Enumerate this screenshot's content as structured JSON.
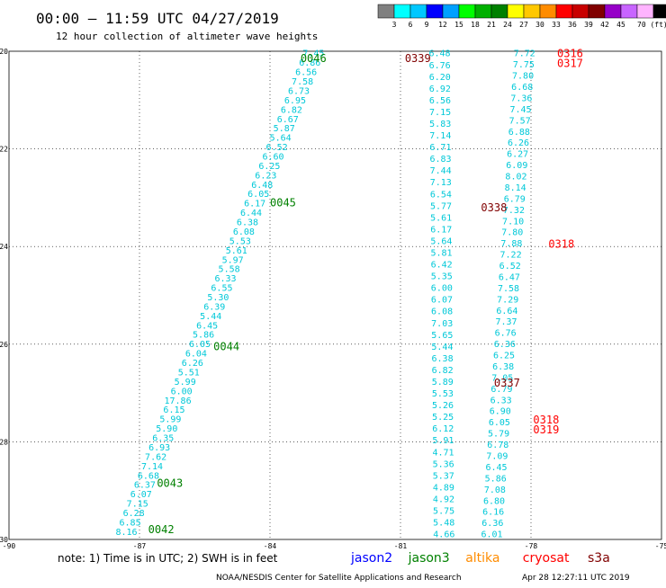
{
  "header": {
    "title": "00:00 — 11:59 UTC 04/27/2019",
    "subtitle": "12 hour collection of altimeter wave heights"
  },
  "colorbar": {
    "colors": [
      "#808080",
      "#00ffff",
      "#00c8ff",
      "#0000ff",
      "#00a0ff",
      "#00ff00",
      "#00b000",
      "#008000",
      "#ffff00",
      "#ffc800",
      "#ff8c00",
      "#ff0000",
      "#c80000",
      "#800000",
      "#9600c8",
      "#c864ff",
      "#ffb4ff",
      "#000000"
    ],
    "labels": [
      "3",
      "6",
      "9",
      "12",
      "15",
      "18",
      "21",
      "24",
      "27",
      "30",
      "33",
      "36",
      "39",
      "42",
      "45",
      "70 (ft)"
    ]
  },
  "footer": {
    "note": "note:  1) Time is in UTC;  2) SWH is in feet",
    "satellites": [
      {
        "name": "jason2",
        "color": "#0000ff"
      },
      {
        "name": "jason3",
        "color": "#008000"
      },
      {
        "name": "altika",
        "color": "#ff8c00"
      },
      {
        "name": "cryosat",
        "color": "#ff0000"
      },
      {
        "name": "s3a",
        "color": "#800000"
      }
    ],
    "credit": "NOAA/NESDIS Center for Satellite Applications and Research",
    "timestamp": "Apr 28 12:27:11 UTC 2019"
  },
  "chart_data": {
    "type": "scatter",
    "xlim": [
      -90,
      -75
    ],
    "ylim": [
      -30,
      -20
    ],
    "x_ticks": [
      "-90",
      "-87",
      "-84",
      "-81",
      "-78",
      "-75"
    ],
    "y_ticks": [
      "-20",
      "-22",
      "-24",
      "-26",
      "-28",
      "-30"
    ],
    "grid": true,
    "tracks": [
      {
        "pass": "0042",
        "color": "#00c8d8",
        "start": {
          "x": -87.3,
          "y": -29.85
        },
        "end": {
          "x": -83.0,
          "y": -20.05
        },
        "values": [
          "8.16",
          "6.85",
          "6.28",
          "7.15",
          "6.07",
          "6.37",
          "6.68",
          "7.14",
          "7.62",
          "6.93",
          "6.35",
          "5.90",
          "5.99",
          "6.15",
          "17.86",
          "6.00",
          "5.99",
          "5.51",
          "6.26",
          "6.04",
          "6.05",
          "5.86",
          "6.45",
          "5.44",
          "6.39",
          "5.30",
          "6.55",
          "6.33",
          "5.58",
          "5.97",
          "5.61",
          "5.53",
          "6.08",
          "6.38",
          "6.44",
          "6.17",
          "6.05",
          "6.48",
          "6.23",
          "6.25",
          "6.60",
          "6.52",
          "5.64",
          "5.87",
          "6.67",
          "6.82",
          "6.95",
          "6.73",
          "7.58",
          "6.56",
          "6.86",
          "7.45"
        ]
      },
      {
        "pass": "0338",
        "color": "#00c8d8",
        "start": {
          "x": -80.1,
          "y": -20.05
        },
        "end": {
          "x": -80.0,
          "y": -29.9
        },
        "values": [
          "6.48",
          "6.76",
          "6.20",
          "6.92",
          "6.56",
          "7.15",
          "5.83",
          "7.14",
          "6.71",
          "6.83",
          "7.44",
          "7.13",
          "6.54",
          "5.77",
          "5.61",
          "6.17",
          "5.64",
          "5.81",
          "6.42",
          "5.35",
          "6.00",
          "6.07",
          "6.08",
          "7.03",
          "5.65",
          "5.44",
          "6.38",
          "6.82",
          "5.89",
          "5.53",
          "5.26",
          "5.25",
          "6.12",
          "5.91",
          "4.71",
          "5.36",
          "5.37",
          "4.89",
          "4.92",
          "5.75",
          "5.48",
          "4.66"
        ]
      },
      {
        "pass": "0317",
        "color": "#00c8d8",
        "start": {
          "x": -78.15,
          "y": -20.05
        },
        "end": {
          "x": -78.9,
          "y": -29.9
        },
        "values": [
          "7.72",
          "7.75",
          "7.80",
          "6.68",
          "7.36",
          "7.45",
          "7.57",
          "6.88",
          "6.26",
          "6.27",
          "6.09",
          "8.02",
          "8.14",
          "6.79",
          "7.32",
          "7.10",
          "7.80",
          "7.88",
          "7.22",
          "6.52",
          "6.47",
          "7.58",
          "7.29",
          "6.64",
          "7.37",
          "6.76",
          "6.36",
          "6.25",
          "6.38",
          "7.05",
          "6.79",
          "6.33",
          "6.90",
          "6.05",
          "5.79",
          "6.78",
          "7.09",
          "6.45",
          "5.86",
          "7.08",
          "6.80",
          "6.16",
          "6.36",
          "6.01"
        ]
      }
    ],
    "pass_labels": [
      {
        "text": "0046",
        "x": -83.3,
        "y": -20.15,
        "color": "#008000"
      },
      {
        "text": "0339",
        "x": -80.9,
        "y": -20.15,
        "color": "#800000"
      },
      {
        "text": "0316",
        "x": -77.4,
        "y": -20.05,
        "color": "#ff0000"
      },
      {
        "text": "0317",
        "x": -77.4,
        "y": -20.25,
        "color": "#ff0000"
      },
      {
        "text": "0045",
        "x": -84.0,
        "y": -23.1,
        "color": "#008000"
      },
      {
        "text": "0338",
        "x": -79.15,
        "y": -23.2,
        "color": "#800000"
      },
      {
        "text": "0318",
        "x": -77.6,
        "y": -23.95,
        "color": "#ff0000"
      },
      {
        "text": "0044",
        "x": -85.3,
        "y": -26.05,
        "color": "#008000"
      },
      {
        "text": "0337",
        "x": -78.85,
        "y": -26.8,
        "color": "#800000"
      },
      {
        "text": "0318",
        "x": -77.95,
        "y": -27.55,
        "color": "#ff0000"
      },
      {
        "text": "0319",
        "x": -77.95,
        "y": -27.75,
        "color": "#ff0000"
      },
      {
        "text": "0043",
        "x": -86.6,
        "y": -28.85,
        "color": "#008000"
      },
      {
        "text": "0042",
        "x": -86.8,
        "y": -29.8,
        "color": "#008000"
      }
    ]
  }
}
